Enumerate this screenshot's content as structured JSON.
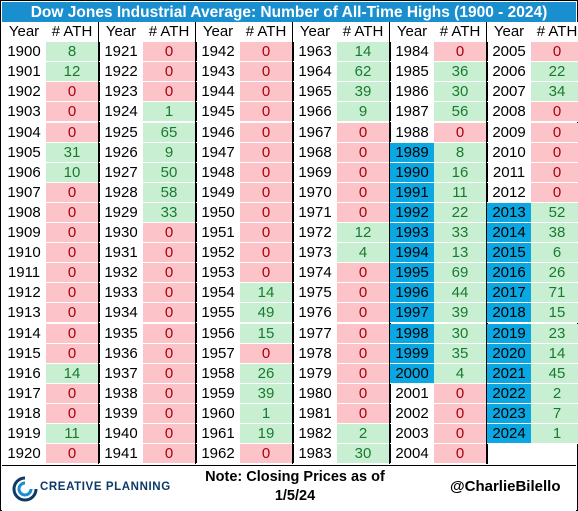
{
  "title": "Dow Jones Industrial Average: Number of All-Time Highs (1900 - 2024)",
  "headers": {
    "year": "Year",
    "ath": "# ATH"
  },
  "footer": {
    "logo": "CREATIVE PLANNING",
    "note_line1": "Note: Closing Prices as of",
    "note_line2": "1/5/24",
    "handle": "@CharlieBilello"
  },
  "colors": {
    "title_bg": "#1a8fcf",
    "positive_bg": "#c9efd2",
    "zero_bg": "#fcc4c8",
    "highlight_year_bg": "#0aa7e2"
  },
  "chart_data": {
    "type": "table",
    "title": "Dow Jones Industrial Average: Number of All-Time Highs (1900 - 2024)",
    "columns": [
      "Year",
      "# ATH"
    ],
    "columns_blocks": [
      {
        "years": [
          1900,
          1901,
          1902,
          1903,
          1904,
          1905,
          1906,
          1907,
          1908,
          1909,
          1910,
          1911,
          1912,
          1913,
          1914,
          1915,
          1916,
          1917,
          1918,
          1919,
          1920
        ],
        "ath": [
          8,
          12,
          0,
          0,
          0,
          31,
          10,
          0,
          0,
          0,
          0,
          0,
          0,
          0,
          0,
          0,
          14,
          0,
          0,
          11,
          0
        ]
      },
      {
        "years": [
          1921,
          1922,
          1923,
          1924,
          1925,
          1926,
          1927,
          1928,
          1929,
          1930,
          1931,
          1932,
          1933,
          1934,
          1935,
          1936,
          1937,
          1938,
          1939,
          1940,
          1941
        ],
        "ath": [
          0,
          0,
          0,
          1,
          65,
          9,
          50,
          58,
          33,
          0,
          0,
          0,
          0,
          0,
          0,
          0,
          0,
          0,
          0,
          0,
          0
        ]
      },
      {
        "years": [
          1942,
          1943,
          1944,
          1945,
          1946,
          1947,
          1948,
          1949,
          1950,
          1951,
          1952,
          1953,
          1954,
          1955,
          1956,
          1957,
          1958,
          1959,
          1960,
          1961,
          1962
        ],
        "ath": [
          0,
          0,
          0,
          0,
          0,
          0,
          0,
          0,
          0,
          0,
          0,
          0,
          14,
          49,
          15,
          0,
          26,
          39,
          1,
          19,
          0
        ]
      },
      {
        "years": [
          1963,
          1964,
          1965,
          1966,
          1967,
          1968,
          1969,
          1970,
          1971,
          1972,
          1973,
          1974,
          1975,
          1976,
          1977,
          1978,
          1979,
          1980,
          1981,
          1982,
          1983
        ],
        "ath": [
          14,
          62,
          39,
          9,
          0,
          0,
          0,
          0,
          0,
          12,
          4,
          0,
          0,
          0,
          0,
          0,
          0,
          0,
          0,
          2,
          30
        ]
      },
      {
        "years": [
          1984,
          1985,
          1986,
          1987,
          1988,
          1989,
          1990,
          1991,
          1992,
          1993,
          1994,
          1995,
          1996,
          1997,
          1998,
          1999,
          2000,
          2001,
          2002,
          2003,
          2004
        ],
        "ath": [
          0,
          36,
          30,
          56,
          0,
          8,
          16,
          11,
          22,
          33,
          13,
          69,
          44,
          39,
          30,
          35,
          4,
          0,
          0,
          0,
          0
        ]
      },
      {
        "years": [
          2005,
          2006,
          2007,
          2008,
          2009,
          2010,
          2011,
          2012,
          2013,
          2014,
          2015,
          2016,
          2017,
          2018,
          2019,
          2020,
          2021,
          2022,
          2023,
          2024
        ],
        "ath": [
          0,
          22,
          34,
          0,
          0,
          0,
          0,
          0,
          52,
          38,
          6,
          26,
          71,
          15,
          23,
          14,
          45,
          2,
          7,
          1
        ]
      }
    ],
    "highlighted_years": [
      1989,
      1990,
      1991,
      1992,
      1993,
      1994,
      1995,
      1996,
      1997,
      1998,
      1999,
      2000,
      2013,
      2014,
      2015,
      2016,
      2017,
      2018,
      2019,
      2020,
      2021,
      2022,
      2023,
      2024
    ]
  }
}
